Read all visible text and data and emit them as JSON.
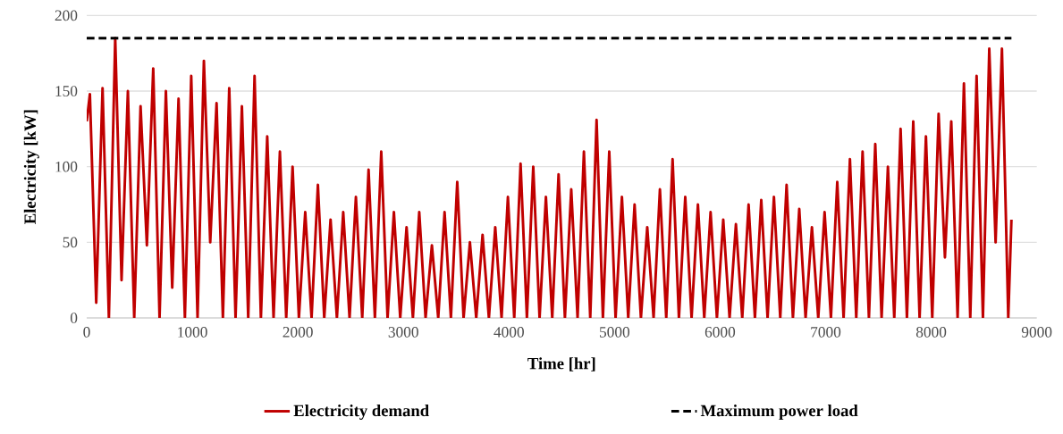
{
  "chart_data": {
    "type": "line",
    "xlabel": "Time [hr]",
    "ylabel": "Electricity [kW]",
    "xlim": [
      0,
      9000
    ],
    "xticks": [
      0,
      1000,
      2000,
      3000,
      4000,
      5000,
      6000,
      7000,
      8000,
      9000
    ],
    "ylim": [
      0,
      200
    ],
    "yticks": [
      0,
      50,
      100,
      150,
      200
    ],
    "grid": "y",
    "legend": "bottom",
    "series": [
      {
        "name": "Electricity demand",
        "color": "#c00000",
        "line_style": "solid",
        "x": [
          0,
          30,
          90,
          150,
          210,
          270,
          330,
          390,
          450,
          510,
          570,
          630,
          690,
          750,
          810,
          870,
          930,
          990,
          1050,
          1110,
          1170,
          1230,
          1290,
          1350,
          1410,
          1470,
          1530,
          1590,
          1650,
          1710,
          1770,
          1830,
          1890,
          1950,
          2010,
          2070,
          2130,
          2190,
          2250,
          2310,
          2370,
          2430,
          2490,
          2550,
          2610,
          2670,
          2730,
          2790,
          2850,
          2910,
          2970,
          3030,
          3090,
          3150,
          3210,
          3270,
          3330,
          3390,
          3450,
          3510,
          3570,
          3630,
          3690,
          3750,
          3810,
          3870,
          3930,
          3990,
          4050,
          4110,
          4170,
          4230,
          4290,
          4350,
          4410,
          4470,
          4530,
          4590,
          4650,
          4710,
          4770,
          4830,
          4890,
          4950,
          5010,
          5070,
          5130,
          5190,
          5250,
          5310,
          5370,
          5430,
          5490,
          5550,
          5610,
          5670,
          5730,
          5790,
          5850,
          5910,
          5970,
          6030,
          6090,
          6150,
          6210,
          6270,
          6330,
          6390,
          6450,
          6510,
          6570,
          6630,
          6690,
          6750,
          6810,
          6870,
          6930,
          6990,
          7050,
          7110,
          7170,
          7230,
          7290,
          7350,
          7410,
          7470,
          7530,
          7590,
          7650,
          7710,
          7770,
          7830,
          7890,
          7950,
          8010,
          8070,
          8130,
          8190,
          8250,
          8310,
          8370,
          8430,
          8490,
          8550,
          8610,
          8670,
          8730,
          8760
        ],
        "values": [
          130,
          148,
          10,
          152,
          0,
          185,
          25,
          150,
          0,
          140,
          48,
          165,
          0,
          150,
          20,
          145,
          0,
          160,
          0,
          170,
          50,
          142,
          0,
          152,
          0,
          140,
          0,
          160,
          0,
          120,
          0,
          110,
          0,
          100,
          0,
          70,
          0,
          88,
          0,
          65,
          0,
          70,
          0,
          80,
          0,
          98,
          0,
          110,
          0,
          70,
          0,
          60,
          0,
          70,
          0,
          48,
          0,
          70,
          0,
          90,
          0,
          50,
          0,
          55,
          0,
          60,
          0,
          80,
          0,
          102,
          0,
          100,
          0,
          80,
          0,
          95,
          0,
          85,
          0,
          110,
          0,
          131,
          0,
          110,
          0,
          80,
          0,
          75,
          0,
          60,
          0,
          85,
          0,
          105,
          0,
          80,
          0,
          75,
          0,
          70,
          0,
          65,
          0,
          62,
          0,
          75,
          0,
          78,
          0,
          80,
          0,
          88,
          0,
          72,
          0,
          60,
          0,
          70,
          0,
          90,
          0,
          105,
          0,
          110,
          0,
          115,
          0,
          100,
          0,
          125,
          0,
          130,
          0,
          120,
          0,
          135,
          40,
          130,
          0,
          155,
          0,
          160,
          0,
          178,
          50,
          178,
          0,
          65
        ]
      },
      {
        "name": "Maximum power load",
        "color": "#000000",
        "line_style": "dashed",
        "x": [
          0,
          8760
        ],
        "values": [
          185,
          185
        ]
      }
    ]
  }
}
